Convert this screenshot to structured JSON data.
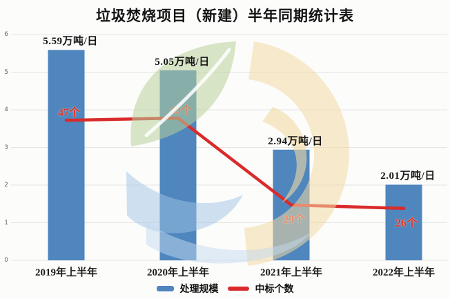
{
  "page": {
    "title": "垃圾焚烧项目（新建）半年同期统计表"
  },
  "legend": {
    "bars": "处理规模",
    "line": "中标个数"
  },
  "colors": {
    "bar": "#4e86bd",
    "line": "#d92b2b",
    "count_label": "#e23428",
    "grid": "#e4e4e4",
    "background": "#fcfcfb",
    "title_text": "#141414",
    "axis_text": "#666666",
    "watermark_green": "#b8d09b",
    "watermark_blue": "#9fc4e6",
    "watermark_orange": "#f2d8a4"
  },
  "chart_data": {
    "type": "bar",
    "subtype": "bar+line combo",
    "title": "垃圾焚烧项目（新建）半年同期统计表",
    "categories": [
      "2019年上半年",
      "2020年上半年",
      "2021年上半年",
      "2022年上半年"
    ],
    "series": [
      {
        "name": "处理规模",
        "type": "bar",
        "unit": "万吨/日",
        "values": [
          5.59,
          5.05,
          2.94,
          2.01
        ],
        "labels": [
          "5.59万吨/日",
          "5.05万吨/日",
          "2.94万吨/日",
          "2.01万吨/日"
        ]
      },
      {
        "name": "中标个数",
        "type": "line",
        "unit": "个",
        "values": [
          47,
          49,
          29,
          26
        ],
        "labels": [
          "47个",
          "49个",
          "29个",
          "26个"
        ],
        "label_positions": [
          "above",
          "above",
          "below",
          "below"
        ],
        "plotted_left_axis_units": [
          3.72,
          3.78,
          1.47,
          1.38
        ]
      }
    ],
    "xlabel": "",
    "ylabel": "",
    "ylim": [
      0,
      6
    ],
    "yticks": [
      0,
      1,
      2,
      3,
      4,
      5,
      6
    ],
    "grid": true,
    "legend_position": "bottom"
  }
}
